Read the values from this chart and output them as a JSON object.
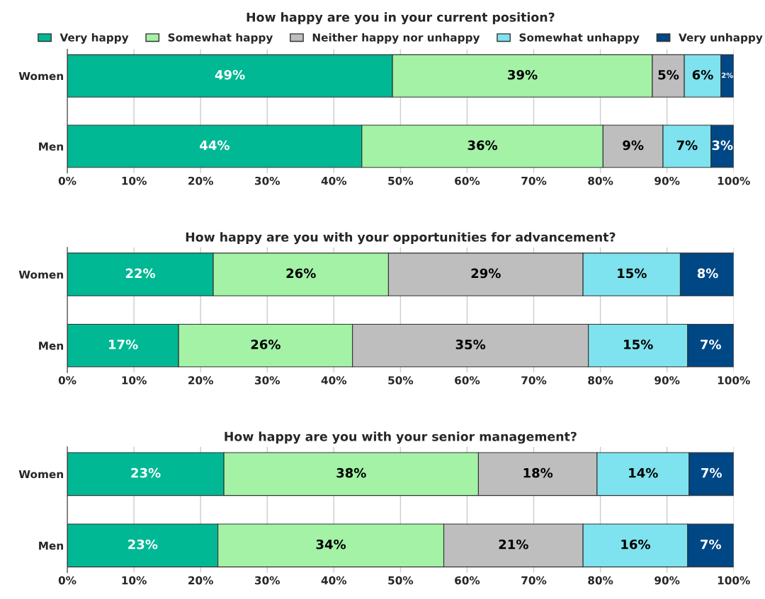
{
  "chart_data": [
    {
      "type": "bar",
      "orientation": "horizontal",
      "stacked": true,
      "title": "How happy are you in your current position?",
      "categories": [
        "Women",
        "Men"
      ],
      "legend": "top",
      "grid": "x",
      "xlim": [
        0,
        100
      ],
      "xticks": [
        {
          "value": 0,
          "label": "0%"
        },
        {
          "value": 10,
          "label": "10%"
        },
        {
          "value": 20,
          "label": "20%"
        },
        {
          "value": 30,
          "label": "30%"
        },
        {
          "value": 40,
          "label": "40%"
        },
        {
          "value": 50,
          "label": "50%"
        },
        {
          "value": 60,
          "label": "60%"
        },
        {
          "value": 70,
          "label": "70%"
        },
        {
          "value": 80,
          "label": "80%"
        },
        {
          "value": 90,
          "label": "90%"
        },
        {
          "value": 100,
          "label": "100%"
        }
      ],
      "series": [
        {
          "name": "Very happy",
          "color": "#00b894",
          "values": [
            48.8,
            44.2
          ],
          "value_labels": [
            "49%",
            "44%"
          ]
        },
        {
          "name": "Somewhat happy",
          "color": "#a3f2a6",
          "values": [
            39.0,
            36.2
          ],
          "value_labels": [
            "39%",
            "36%"
          ]
        },
        {
          "name": "Neither happy nor unhappy",
          "color": "#bebebe",
          "values": [
            4.8,
            9.0
          ],
          "value_labels": [
            "5%",
            "9%"
          ]
        },
        {
          "name": "Somewhat unhappy",
          "color": "#7ee3ee",
          "values": [
            5.5,
            7.2
          ],
          "value_labels": [
            "6%",
            "7%"
          ]
        },
        {
          "name": "Very unhappy",
          "color": "#004785",
          "values": [
            1.9,
            3.4
          ],
          "value_labels": [
            "2%",
            "3%"
          ]
        }
      ]
    },
    {
      "type": "bar",
      "orientation": "horizontal",
      "stacked": true,
      "title": "How happy are you with your opportunities for advancement?",
      "categories": [
        "Women",
        "Men"
      ],
      "grid": "x",
      "xlim": [
        0,
        100
      ],
      "xticks": [
        {
          "value": 0,
          "label": "0%"
        },
        {
          "value": 10,
          "label": "10%"
        },
        {
          "value": 20,
          "label": "20%"
        },
        {
          "value": 30,
          "label": "30%"
        },
        {
          "value": 40,
          "label": "40%"
        },
        {
          "value": 50,
          "label": "50%"
        },
        {
          "value": 60,
          "label": "60%"
        },
        {
          "value": 70,
          "label": "70%"
        },
        {
          "value": 80,
          "label": "80%"
        },
        {
          "value": 90,
          "label": "90%"
        },
        {
          "value": 100,
          "label": "100%"
        }
      ],
      "series": [
        {
          "color": "#00b894",
          "values": [
            21.9,
            16.7
          ],
          "value_labels": [
            "22%",
            "17%"
          ]
        },
        {
          "color": "#a3f2a6",
          "values": [
            26.3,
            26.1
          ],
          "value_labels": [
            "26%",
            "26%"
          ]
        },
        {
          "color": "#bebebe",
          "values": [
            29.2,
            35.4
          ],
          "value_labels": [
            "29%",
            "35%"
          ]
        },
        {
          "color": "#7ee3ee",
          "values": [
            14.6,
            14.9
          ],
          "value_labels": [
            "15%",
            "15%"
          ]
        },
        {
          "color": "#004785",
          "values": [
            8.2,
            6.9
          ],
          "value_labels": [
            "8%",
            "7%"
          ]
        }
      ]
    },
    {
      "type": "bar",
      "orientation": "horizontal",
      "stacked": true,
      "title": "How happy are you with your senior management?",
      "categories": [
        "Women",
        "Men"
      ],
      "grid": "x",
      "xlim": [
        0,
        100
      ],
      "xticks": [
        {
          "value": 0,
          "label": "0%"
        },
        {
          "value": 10,
          "label": "10%"
        },
        {
          "value": 20,
          "label": "20%"
        },
        {
          "value": 30,
          "label": "30%"
        },
        {
          "value": 40,
          "label": "40%"
        },
        {
          "value": 50,
          "label": "50%"
        },
        {
          "value": 60,
          "label": "60%"
        },
        {
          "value": 70,
          "label": "70%"
        },
        {
          "value": 80,
          "label": "80%"
        },
        {
          "value": 90,
          "label": "90%"
        },
        {
          "value": 100,
          "label": "100%"
        }
      ],
      "series": [
        {
          "color": "#00b894",
          "values": [
            23.5,
            22.6
          ],
          "value_labels": [
            "23%",
            "23%"
          ]
        },
        {
          "color": "#a3f2a6",
          "values": [
            38.2,
            33.9
          ],
          "value_labels": [
            "38%",
            "34%"
          ]
        },
        {
          "color": "#bebebe",
          "values": [
            17.8,
            20.9
          ],
          "value_labels": [
            "18%",
            "21%"
          ]
        },
        {
          "color": "#7ee3ee",
          "values": [
            13.8,
            15.7
          ],
          "value_labels": [
            "14%",
            "16%"
          ]
        },
        {
          "color": "#004785",
          "values": [
            6.7,
            6.9
          ],
          "value_labels": [
            "7%",
            "7%"
          ]
        }
      ]
    }
  ]
}
